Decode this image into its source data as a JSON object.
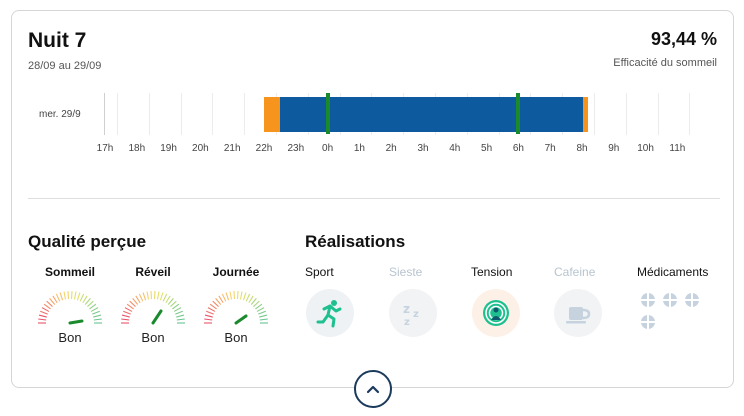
{
  "header": {
    "title": "Nuit 7",
    "dates": "28/09 au 29/09",
    "efficiency_value": "93,44 %",
    "efficiency_label": "Efficacité du sommeil"
  },
  "timeline": {
    "row_label": "mer. 29/9",
    "ticks": [
      "17h",
      "18h",
      "19h",
      "20h",
      "21h",
      "22h",
      "23h",
      "0h",
      "1h",
      "2h",
      "3h",
      "4h",
      "5h",
      "6h",
      "7h",
      "8h",
      "9h",
      "10h",
      "11h"
    ],
    "colors": {
      "asleep": "#0d5a9e",
      "awake": "#f7941d",
      "marker": "#1a8a2c"
    }
  },
  "quality": {
    "title": "Qualité perçue",
    "items": [
      {
        "label": "Sommeil",
        "value": "Bon"
      },
      {
        "label": "Réveil",
        "value": "Bon"
      },
      {
        "label": "Journée",
        "value": "Bon"
      }
    ],
    "needle_color": "#1a8a2c"
  },
  "achievements": {
    "title": "Réalisations",
    "items": [
      {
        "label": "Sport",
        "icon": "running-icon",
        "active": true
      },
      {
        "label": "Sieste",
        "icon": "zzz-icon",
        "active": false
      },
      {
        "label": "Tension",
        "icon": "tension-icon",
        "active": true
      },
      {
        "label": "Cafeine",
        "icon": "coffee-cup-icon",
        "active": false
      },
      {
        "label": "Médicaments",
        "icon": "medication-icon",
        "active": false
      }
    ],
    "accent": "#1ec08f"
  },
  "footer": {
    "toggle_icon": "chevron-up-icon"
  }
}
